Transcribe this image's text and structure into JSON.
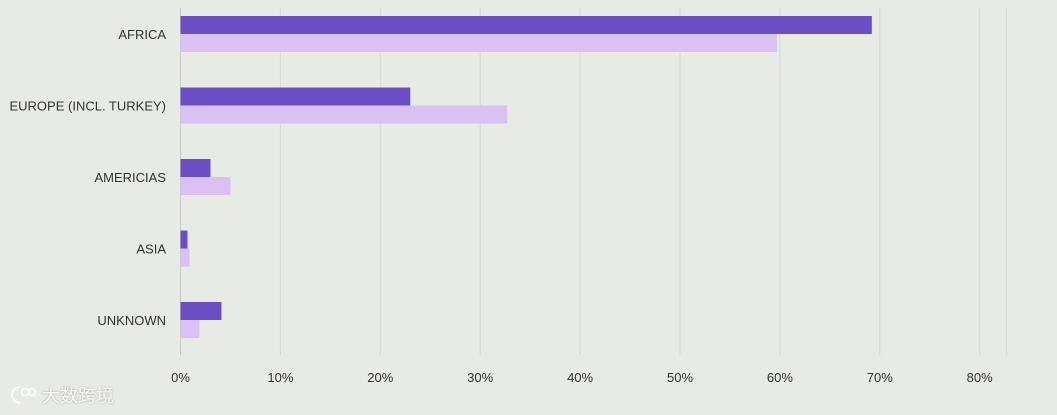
{
  "chart_data": {
    "type": "bar",
    "orientation": "horizontal",
    "categories": [
      "AFRICA",
      "EUROPE (INCL. TURKEY)",
      "AMERICIAS",
      "ASIA",
      "UNKNOWN"
    ],
    "series": [
      {
        "color": "#6a4fc4",
        "values": [
          69.2,
          23.0,
          3.0,
          0.7,
          4.1
        ]
      },
      {
        "color": "#d9c2f3",
        "values": [
          59.7,
          32.7,
          5.0,
          0.9,
          1.9
        ]
      }
    ],
    "x_ticks": [
      "0%",
      "10%",
      "20%",
      "30%",
      "40%",
      "50%",
      "60%",
      "70%",
      "80%"
    ],
    "xlim": [
      0,
      80
    ],
    "grid": true,
    "legend": "none"
  },
  "watermark": {
    "text": "大数跨境"
  }
}
